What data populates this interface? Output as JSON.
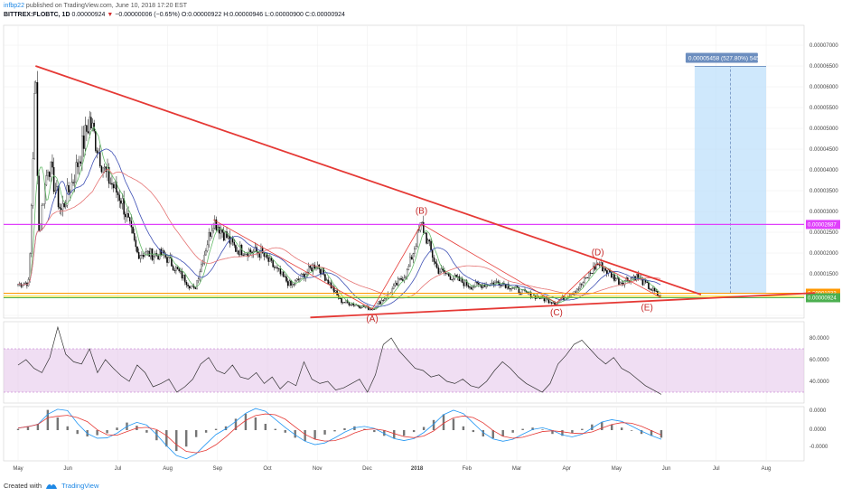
{
  "header": {
    "author": "infbp22",
    "published": "published on TradingView.com, June 10, 2018 17:20 EST",
    "symbol": "BITTREX:FLOBTC, 1D",
    "last": "0.00000924",
    "change_arrow": "▼",
    "change": "−0.00000006 (−0.65%)",
    "ohlc_label_o": "O:",
    "ohlc_o": "0.00000922",
    "ohlc_label_h": "H:",
    "ohlc_h": "0.00000946",
    "ohlc_label_l": "L:",
    "ohlc_l": "0.00000900",
    "ohlc_label_c": "C:",
    "ohlc_c": "0.00000924"
  },
  "footer": {
    "created_with": "Created with",
    "brand": "TradingView",
    "logo_icon": "tradingview-logo-icon"
  },
  "colors": {
    "trendline": "#e53935",
    "resistance": "#e040fb",
    "support_orange": "#ff9800",
    "support_yellow": "#ffd600",
    "ma_blue": "#3f51b5",
    "ma_red": "#e57373",
    "ma_green": "#66bb6a",
    "candle": "#000000",
    "rsi_line": "#333333",
    "rsi_band": "#e1bee7",
    "macd_blue": "#2196f3",
    "macd_red": "#e53935",
    "measure_fill": "#bbdefb",
    "measure_label": "#6c8ebf"
  },
  "chart_data": [
    {
      "type": "candlestick",
      "symbol": "BITTREX:FLOBTC",
      "interval": "1D",
      "x_ticks": [
        "May",
        "Jun",
        "Jul",
        "Aug",
        "Sep",
        "Oct",
        "Nov",
        "Dec",
        "2018",
        "Feb",
        "Mar",
        "Apr",
        "May",
        "Jun",
        "Jul",
        "Aug"
      ],
      "y_ticks": [
        "0.00007000",
        "0.00006500",
        "0.00006000",
        "0.00005500",
        "0.00005000",
        "0.00004500",
        "0.00004000",
        "0.00003500",
        "0.00003000",
        "0.00002500",
        "0.00002000",
        "0.00001500",
        "0.00001000",
        "0.00000500"
      ],
      "ylim": [
        1.5e-06,
        7.2e-06
      ],
      "price_tags": [
        {
          "label": "0.00002687",
          "value": 2.687e-05,
          "color": "#e040fb"
        },
        {
          "label": "0.00001033",
          "value": 1.033e-05,
          "color": "#ff9800"
        },
        {
          "label": "0.00000924",
          "value": 9.24e-06,
          "color": "#4caf50"
        }
      ],
      "price_path": [
        {
          "x": "2017-05-01",
          "y": 1.25e-05
        },
        {
          "x": "2017-05-08",
          "y": 1.3e-05
        },
        {
          "x": "2017-05-12",
          "y": 6.5e-05
        },
        {
          "x": "2017-05-14",
          "y": 2.5e-05
        },
        {
          "x": "2017-05-20",
          "y": 4.2e-05
        },
        {
          "x": "2017-05-28",
          "y": 3e-05
        },
        {
          "x": "2017-06-05",
          "y": 3.8e-05
        },
        {
          "x": "2017-06-15",
          "y": 5.2e-05
        },
        {
          "x": "2017-06-25",
          "y": 3.9e-05
        },
        {
          "x": "2017-07-05",
          "y": 3.3e-05
        },
        {
          "x": "2017-07-15",
          "y": 2e-05
        },
        {
          "x": "2017-08-01",
          "y": 1.95e-05
        },
        {
          "x": "2017-08-20",
          "y": 1.1e-05
        },
        {
          "x": "2017-09-01",
          "y": 2.8e-05
        },
        {
          "x": "2017-09-15",
          "y": 2.1e-05
        },
        {
          "x": "2017-10-01",
          "y": 2e-05
        },
        {
          "x": "2017-10-20",
          "y": 1.2e-05
        },
        {
          "x": "2017-11-05",
          "y": 1.75e-05
        },
        {
          "x": "2017-11-20",
          "y": 8.5e-06
        },
        {
          "x": "2017-12-10",
          "y": 6.5e-06
        },
        {
          "x": "2017-12-20",
          "y": 1e-05
        },
        {
          "x": "2018-01-01",
          "y": 1.55e-05
        },
        {
          "x": "2018-01-10",
          "y": 2.7e-05
        },
        {
          "x": "2018-01-20",
          "y": 1.6e-05
        },
        {
          "x": "2018-02-10",
          "y": 1.2e-05
        },
        {
          "x": "2018-03-01",
          "y": 1.3e-05
        },
        {
          "x": "2018-03-15",
          "y": 1.05e-05
        },
        {
          "x": "2018-04-05",
          "y": 8e-06
        },
        {
          "x": "2018-04-20",
          "y": 1.2e-05
        },
        {
          "x": "2018-05-01",
          "y": 1.75e-05
        },
        {
          "x": "2018-05-15",
          "y": 1.3e-05
        },
        {
          "x": "2018-05-25",
          "y": 1.45e-05
        },
        {
          "x": "2018-06-10",
          "y": 9.2e-06
        }
      ],
      "trendlines": [
        {
          "name": "upper-trendline",
          "from": {
            "x": "2017-05-12",
            "y": 6.5e-05
          },
          "to": {
            "x": "2018-07-05",
            "y": 1e-05
          }
        },
        {
          "name": "lower-trendline",
          "from": {
            "x": "2017-11-01",
            "y": 4.5e-06
          },
          "to": {
            "x": "2018-09-15",
            "y": 1.04e-05
          }
        },
        {
          "name": "bc-leg",
          "from": {
            "x": "2018-01-10",
            "y": 2.7e-05
          },
          "to": {
            "x": "2018-04-05",
            "y": 8e-06
          }
        },
        {
          "name": "cd-leg",
          "from": {
            "x": "2018-04-05",
            "y": 8e-06
          },
          "to": {
            "x": "2018-05-01",
            "y": 1.75e-05
          }
        },
        {
          "name": "de-leg",
          "from": {
            "x": "2018-05-01",
            "y": 1.75e-05
          },
          "to": {
            "x": "2018-06-10",
            "y": 9.2e-06
          }
        },
        {
          "name": "ab-leg",
          "from": {
            "x": "2017-12-10",
            "y": 6.5e-06
          },
          "to": {
            "x": "2018-01-10",
            "y": 2.7e-05
          }
        },
        {
          "name": "sep-decline",
          "from": {
            "x": "2017-09-01",
            "y": 2.8e-05
          },
          "to": {
            "x": "2017-12-10",
            "y": 6.5e-06
          }
        }
      ],
      "horizontal_levels": [
        2.687e-05,
        1.033e-05,
        9.24e-06
      ],
      "wave_labels": [
        "(A)",
        "(B)",
        "(C)",
        "(D)",
        "(E)"
      ],
      "measure": {
        "label": "0.00005458 (527.80%) 5458",
        "from": {
          "x": "2018-07-01",
          "y": 1.03e-05
        },
        "to": {
          "x": "2018-08-15",
          "y": 6.49e-05
        }
      }
    },
    {
      "type": "line",
      "name": "RSI",
      "y_ticks": [
        "80.0000",
        "60.0000",
        "40.0000"
      ],
      "ylim": [
        20,
        95
      ],
      "band": [
        30,
        70
      ],
      "values": [
        55,
        60,
        52,
        48,
        62,
        90,
        65,
        58,
        56,
        70,
        48,
        60,
        52,
        45,
        40,
        55,
        48,
        35,
        38,
        42,
        30,
        35,
        42,
        56,
        62,
        50,
        47,
        55,
        44,
        42,
        48,
        38,
        44,
        33,
        40,
        36,
        58,
        42,
        38,
        40,
        32,
        34,
        38,
        42,
        30,
        46,
        74,
        80,
        68,
        60,
        52,
        50,
        44,
        46,
        40,
        38,
        42,
        36,
        34,
        40,
        50,
        58,
        52,
        44,
        38,
        34,
        30,
        38,
        56,
        64,
        74,
        78,
        70,
        62,
        56,
        62,
        52,
        48,
        42,
        36,
        32,
        28
      ]
    },
    {
      "type": "bar",
      "name": "MACD",
      "y_ticks": [
        "0.0000",
        "0.0000",
        "-0.0000"
      ],
      "series": [
        {
          "name": "",
          "values": [
            0.2,
            0.5,
            1.0,
            3.2,
            2.0,
            0.6,
            -0.6,
            -1.0,
            -0.8,
            -0.5,
            0.4,
            1.2,
            0.7,
            -0.4,
            -1.6,
            -2.6,
            -3.3,
            -2.6,
            -1.1,
            -0.4,
            0.2,
            0.6,
            1.8,
            2.6,
            2.0,
            1.0,
            0.2,
            -0.4,
            -1.2,
            -1.7,
            -1.4,
            -0.7,
            -0.2,
            0.3,
            0.6,
            0.2,
            -0.3,
            -0.9,
            -1.3,
            -0.9,
            -0.3,
            0.5,
            1.6,
            2.5,
            1.8,
            0.6,
            -0.3,
            -1.0,
            -1.3,
            -1.0,
            -0.4,
            0.2,
            0.4,
            0.1,
            -0.6,
            -0.9,
            -0.5,
            0.2,
            0.9,
            1.3,
            0.9,
            0.4,
            -0.1,
            -0.6,
            -0.9,
            -1.2
          ]
        }
      ]
    }
  ]
}
